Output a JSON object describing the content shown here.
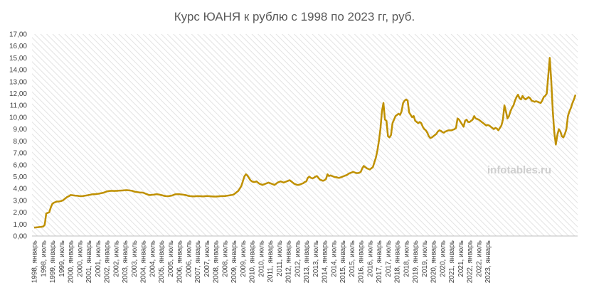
{
  "chart_data": {
    "type": "line",
    "title": "Курс ЮАНЯ к рублю с 1998 по 2023 гг, руб.",
    "watermark": "infotables.ru",
    "xlabel": "",
    "ylabel": "",
    "ylim": [
      0,
      17
    ],
    "y_ticks": [
      "0,00",
      "1,00",
      "2,00",
      "3,00",
      "4,00",
      "5,00",
      "6,00",
      "7,00",
      "8,00",
      "9,00",
      "10,00",
      "11,00",
      "12,00",
      "13,00",
      "14,00",
      "15,00",
      "16,00",
      "17,00"
    ],
    "grid": "hatched background",
    "legend": "none",
    "line_color": "#BF9000",
    "x_tick_labels": [
      "1998, январь",
      "1998, июль",
      "1999, январь",
      "1999, июль",
      "2000, январь",
      "2000, июль",
      "2001, январь",
      "2001, июль",
      "2002, январь",
      "2002, июль",
      "2003, январь",
      "2003, июль",
      "2004, январь",
      "2004, июль",
      "2005, январь",
      "2005, июль",
      "2006, январь",
      "2006, июль",
      "2007, январь",
      "2007, июль",
      "2008, январь",
      "2008, июль",
      "2009, январь",
      "2009, июль",
      "2010, январь",
      "2010, июль",
      "2011, январь",
      "2011, июль",
      "2012, январь",
      "2012, июль",
      "2013, январь",
      "2013, июль",
      "2014, январь",
      "2014, июль",
      "2015, январь",
      "2015, июль",
      "2016, январь",
      "2016, июль",
      "2017, январь",
      "2017, июль",
      "2018, январь",
      "2018, июль",
      "2019, январь",
      "2019, июль",
      "2020, январь",
      "2020, июль",
      "2021, январь",
      "2021, июль",
      "2022, январь",
      "2022, июль",
      "2023, январь"
    ],
    "series": [
      {
        "values": [
          0.71,
          0.72,
          0.73,
          0.75,
          0.76,
          0.78,
          0.8,
          0.95,
          1.9,
          1.95,
          2.0,
          2.4,
          2.7,
          2.8,
          2.85,
          2.9,
          2.9,
          2.92,
          2.95,
          3.0,
          3.1,
          3.2,
          3.3,
          3.35,
          3.45,
          3.44,
          3.42,
          3.4,
          3.4,
          3.38,
          3.36,
          3.35,
          3.36,
          3.38,
          3.4,
          3.42,
          3.45,
          3.47,
          3.5,
          3.52,
          3.52,
          3.53,
          3.55,
          3.57,
          3.6,
          3.62,
          3.65,
          3.7,
          3.75,
          3.78,
          3.79,
          3.8,
          3.8,
          3.79,
          3.8,
          3.8,
          3.82,
          3.82,
          3.83,
          3.84,
          3.85,
          3.86,
          3.85,
          3.84,
          3.82,
          3.8,
          3.75,
          3.72,
          3.7,
          3.68,
          3.66,
          3.66,
          3.65,
          3.6,
          3.55,
          3.5,
          3.45,
          3.45,
          3.47,
          3.48,
          3.5,
          3.52,
          3.5,
          3.48,
          3.45,
          3.42,
          3.38,
          3.36,
          3.35,
          3.36,
          3.38,
          3.4,
          3.45,
          3.5,
          3.52,
          3.52,
          3.52,
          3.5,
          3.49,
          3.47,
          3.45,
          3.42,
          3.38,
          3.36,
          3.35,
          3.34,
          3.34,
          3.35,
          3.36,
          3.35,
          3.35,
          3.34,
          3.34,
          3.35,
          3.36,
          3.36,
          3.35,
          3.34,
          3.33,
          3.32,
          3.32,
          3.33,
          3.34,
          3.35,
          3.36,
          3.36,
          3.36,
          3.38,
          3.4,
          3.42,
          3.44,
          3.46,
          3.5,
          3.6,
          3.7,
          3.8,
          4.0,
          4.2,
          4.6,
          5.0,
          5.2,
          5.1,
          4.9,
          4.7,
          4.6,
          4.55,
          4.55,
          4.6,
          4.5,
          4.4,
          4.35,
          4.3,
          4.35,
          4.4,
          4.45,
          4.5,
          4.45,
          4.4,
          4.35,
          4.3,
          4.4,
          4.5,
          4.55,
          4.6,
          4.55,
          4.5,
          4.55,
          4.6,
          4.65,
          4.7,
          4.6,
          4.5,
          4.4,
          4.35,
          4.3,
          4.3,
          4.35,
          4.4,
          4.45,
          4.55,
          4.6,
          4.9,
          5.0,
          4.9,
          4.85,
          4.9,
          5.0,
          5.05,
          4.9,
          4.75,
          4.7,
          4.65,
          4.7,
          4.8,
          5.2,
          5.05,
          5.1,
          5.05,
          5.0,
          4.95,
          4.95,
          4.9,
          4.9,
          4.95,
          5.0,
          5.05,
          5.1,
          5.15,
          5.25,
          5.3,
          5.35,
          5.4,
          5.35,
          5.3,
          5.3,
          5.32,
          5.4,
          5.7,
          5.9,
          5.8,
          5.7,
          5.65,
          5.6,
          5.7,
          5.8,
          6.2,
          6.6,
          7.2,
          8.0,
          9.0,
          10.5,
          11.2,
          9.8,
          9.7,
          8.4,
          8.3,
          8.5,
          9.5,
          9.8,
          10.1,
          10.2,
          10.3,
          10.2,
          10.5,
          11.2,
          11.4,
          11.5,
          11.4,
          10.4,
          10.2,
          10.0,
          10.1,
          9.7,
          9.6,
          9.5,
          9.6,
          9.5,
          9.2,
          9.0,
          8.9,
          8.7,
          8.4,
          8.25,
          8.3,
          8.4,
          8.5,
          8.6,
          8.8,
          8.9,
          8.85,
          8.75,
          8.7,
          8.8,
          8.85,
          8.9,
          8.9,
          8.9,
          8.95,
          9.0,
          9.1,
          9.9,
          9.8,
          9.6,
          9.4,
          9.2,
          9.7,
          9.8,
          9.6,
          9.6,
          9.7,
          9.8,
          10.1,
          9.9,
          9.85,
          9.8,
          9.7,
          9.6,
          9.5,
          9.4,
          9.3,
          9.35,
          9.3,
          9.2,
          9.1,
          9.0,
          9.1,
          9.05,
          8.9,
          9.1,
          9.3,
          9.8,
          11.0,
          10.5,
          9.9,
          10.1,
          10.5,
          10.8,
          11.0,
          11.4,
          11.7,
          11.9,
          11.6,
          11.5,
          11.8,
          11.6,
          11.5,
          11.6,
          11.7,
          11.6,
          11.4,
          11.35,
          11.3,
          11.35,
          11.3,
          11.25,
          11.2,
          11.4,
          11.7,
          11.8,
          12.0,
          13.5,
          15.0,
          13.0,
          10.5,
          8.7,
          7.7,
          8.5,
          9.0,
          8.8,
          8.4,
          8.3,
          8.6,
          9.0,
          10.1,
          10.5,
          10.8,
          11.2,
          11.5,
          11.9
        ]
      }
    ]
  }
}
